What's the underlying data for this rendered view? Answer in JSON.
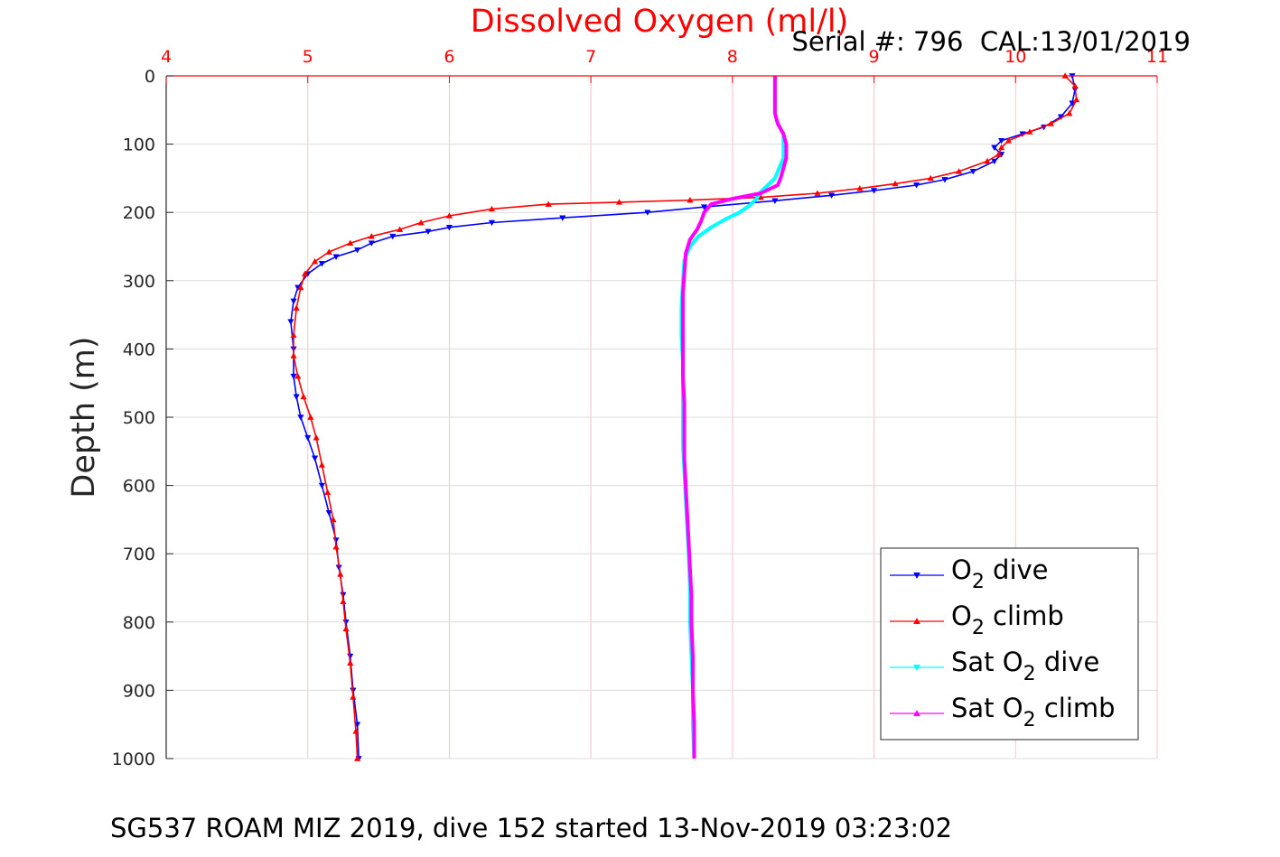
{
  "chart_data": {
    "type": "line",
    "title": "Dissolved Oxygen (ml/l)",
    "subtitle": "Serial #: 796  CAL:13/01/2019",
    "footer": "SG537 ROAM MIZ 2019, dive 152 started 13-Nov-2019 03:23:02",
    "xlabel": "Dissolved Oxygen (ml/l)",
    "ylabel": "Depth (m)",
    "xlim": [
      4,
      11
    ],
    "ylim": [
      0,
      1000
    ],
    "y_reversed": true,
    "x_axis_position": "top",
    "xticks": [
      4,
      5,
      6,
      7,
      8,
      9,
      10,
      11
    ],
    "yticks": [
      0,
      100,
      200,
      300,
      400,
      500,
      600,
      700,
      800,
      900,
      1000
    ],
    "grid": true,
    "legend_position": "lower-right",
    "series": [
      {
        "name": "O2 dive",
        "legend_parts": [
          "O",
          "2",
          " dive"
        ],
        "color": "#0000ff",
        "marker": "triangle-down",
        "points": [
          [
            10.4,
            0
          ],
          [
            10.42,
            20
          ],
          [
            10.4,
            40
          ],
          [
            10.32,
            60
          ],
          [
            10.2,
            75
          ],
          [
            10.05,
            85
          ],
          [
            9.9,
            95
          ],
          [
            9.85,
            105
          ],
          [
            9.9,
            115
          ],
          [
            9.85,
            125
          ],
          [
            9.7,
            140
          ],
          [
            9.5,
            152
          ],
          [
            9.3,
            160
          ],
          [
            9.0,
            168
          ],
          [
            8.7,
            175
          ],
          [
            8.3,
            183
          ],
          [
            7.8,
            192
          ],
          [
            7.4,
            200
          ],
          [
            6.8,
            208
          ],
          [
            6.3,
            215
          ],
          [
            6.0,
            222
          ],
          [
            5.85,
            228
          ],
          [
            5.6,
            235
          ],
          [
            5.45,
            245
          ],
          [
            5.35,
            255
          ],
          [
            5.2,
            265
          ],
          [
            5.1,
            275
          ],
          [
            5.0,
            290
          ],
          [
            4.93,
            310
          ],
          [
            4.9,
            330
          ],
          [
            4.88,
            360
          ],
          [
            4.9,
            400
          ],
          [
            4.9,
            440
          ],
          [
            4.92,
            470
          ],
          [
            4.95,
            500
          ],
          [
            5.0,
            530
          ],
          [
            5.05,
            560
          ],
          [
            5.1,
            600
          ],
          [
            5.15,
            640
          ],
          [
            5.2,
            680
          ],
          [
            5.22,
            720
          ],
          [
            5.25,
            760
          ],
          [
            5.27,
            800
          ],
          [
            5.3,
            850
          ],
          [
            5.32,
            900
          ],
          [
            5.35,
            950
          ],
          [
            5.36,
            1000
          ]
        ]
      },
      {
        "name": "O2 climb",
        "legend_parts": [
          "O",
          "2",
          " climb"
        ],
        "color": "#ff0000",
        "marker": "triangle-up",
        "points": [
          [
            10.35,
            0
          ],
          [
            10.42,
            15
          ],
          [
            10.43,
            35
          ],
          [
            10.38,
            55
          ],
          [
            10.25,
            70
          ],
          [
            10.1,
            82
          ],
          [
            9.95,
            95
          ],
          [
            9.9,
            105
          ],
          [
            9.88,
            115
          ],
          [
            9.8,
            125
          ],
          [
            9.6,
            140
          ],
          [
            9.4,
            150
          ],
          [
            9.15,
            158
          ],
          [
            8.9,
            165
          ],
          [
            8.6,
            172
          ],
          [
            8.2,
            178
          ],
          [
            7.7,
            182
          ],
          [
            7.2,
            185
          ],
          [
            6.7,
            188
          ],
          [
            6.3,
            195
          ],
          [
            6.0,
            205
          ],
          [
            5.8,
            215
          ],
          [
            5.65,
            225
          ],
          [
            5.45,
            235
          ],
          [
            5.3,
            245
          ],
          [
            5.15,
            258
          ],
          [
            5.05,
            272
          ],
          [
            4.98,
            290
          ],
          [
            4.95,
            310
          ],
          [
            4.92,
            340
          ],
          [
            4.9,
            380
          ],
          [
            4.9,
            410
          ],
          [
            4.93,
            440
          ],
          [
            4.97,
            470
          ],
          [
            5.02,
            500
          ],
          [
            5.06,
            530
          ],
          [
            5.1,
            570
          ],
          [
            5.14,
            610
          ],
          [
            5.18,
            650
          ],
          [
            5.2,
            690
          ],
          [
            5.23,
            730
          ],
          [
            5.25,
            770
          ],
          [
            5.27,
            810
          ],
          [
            5.3,
            860
          ],
          [
            5.32,
            910
          ],
          [
            5.34,
            960
          ],
          [
            5.35,
            1000
          ]
        ]
      },
      {
        "name": "Sat O2 dive",
        "legend_parts": [
          "Sat O",
          "2",
          " dive"
        ],
        "color": "#00ffff",
        "marker": "triangle-down",
        "points": [
          [
            8.3,
            0
          ],
          [
            8.3,
            30
          ],
          [
            8.3,
            55
          ],
          [
            8.32,
            70
          ],
          [
            8.36,
            85
          ],
          [
            8.36,
            100
          ],
          [
            8.36,
            120
          ],
          [
            8.33,
            135
          ],
          [
            8.3,
            150
          ],
          [
            8.25,
            160
          ],
          [
            8.2,
            170
          ],
          [
            8.17,
            180
          ],
          [
            8.12,
            190
          ],
          [
            8.05,
            200
          ],
          [
            7.95,
            210
          ],
          [
            7.85,
            222
          ],
          [
            7.76,
            235
          ],
          [
            7.7,
            250
          ],
          [
            7.66,
            270
          ],
          [
            7.65,
            300
          ],
          [
            7.64,
            340
          ],
          [
            7.64,
            380
          ],
          [
            7.65,
            420
          ],
          [
            7.65,
            460
          ],
          [
            7.65,
            500
          ],
          [
            7.65,
            540
          ],
          [
            7.66,
            580
          ],
          [
            7.67,
            620
          ],
          [
            7.68,
            660
          ],
          [
            7.69,
            700
          ],
          [
            7.7,
            750
          ],
          [
            7.7,
            800
          ],
          [
            7.71,
            850
          ],
          [
            7.72,
            900
          ],
          [
            7.72,
            950
          ],
          [
            7.73,
            1000
          ]
        ]
      },
      {
        "name": "Sat O2 climb",
        "legend_parts": [
          "Sat O",
          "2",
          " climb"
        ],
        "color": "#ff00ff",
        "marker": "triangle-up",
        "points": [
          [
            8.3,
            0
          ],
          [
            8.3,
            30
          ],
          [
            8.3,
            55
          ],
          [
            8.32,
            70
          ],
          [
            8.36,
            85
          ],
          [
            8.38,
            100
          ],
          [
            8.38,
            120
          ],
          [
            8.36,
            135
          ],
          [
            8.34,
            150
          ],
          [
            8.32,
            160
          ],
          [
            8.2,
            172
          ],
          [
            8.0,
            180
          ],
          [
            7.85,
            188
          ],
          [
            7.8,
            200
          ],
          [
            7.78,
            212
          ],
          [
            7.75,
            225
          ],
          [
            7.7,
            240
          ],
          [
            7.67,
            260
          ],
          [
            7.66,
            290
          ],
          [
            7.65,
            320
          ],
          [
            7.65,
            360
          ],
          [
            7.65,
            400
          ],
          [
            7.65,
            440
          ],
          [
            7.66,
            480
          ],
          [
            7.66,
            520
          ],
          [
            7.66,
            560
          ],
          [
            7.67,
            600
          ],
          [
            7.68,
            640
          ],
          [
            7.69,
            680
          ],
          [
            7.7,
            720
          ],
          [
            7.71,
            760
          ],
          [
            7.71,
            800
          ],
          [
            7.72,
            850
          ],
          [
            7.72,
            900
          ],
          [
            7.73,
            950
          ],
          [
            7.73,
            1000
          ]
        ]
      }
    ]
  }
}
